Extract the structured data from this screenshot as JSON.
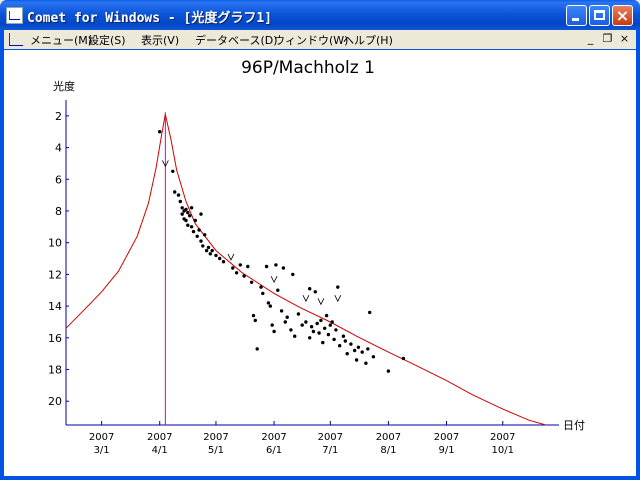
{
  "window": {
    "title": "Comet for Windows - [光度グラフ1]"
  },
  "menubar": {
    "items": [
      "メニュー(M)",
      "設定(S)",
      "表示(V)",
      "データベース(D)",
      "ウィンドウ(W)",
      "ヘルプ(H)"
    ]
  },
  "mdi_buttons": {
    "minimize": "_",
    "restore": "❐",
    "close": "×"
  },
  "chart_data": {
    "type": "scatter",
    "title": "96P/Machholz 1",
    "ylabel": "光度",
    "xlabel": "日付",
    "y_ticks": [
      "2",
      "4",
      "6",
      "8",
      "10",
      "12",
      "14",
      "16",
      "18",
      "20"
    ],
    "y_axis": {
      "inverted": true,
      "range": [
        1,
        21.5
      ]
    },
    "x_axis": {
      "range": [
        "2007-02-10",
        "2007-10-31"
      ]
    },
    "x_ticks": [
      {
        "year": "2007",
        "date": "3/1"
      },
      {
        "year": "2007",
        "date": "4/1"
      },
      {
        "year": "2007",
        "date": "5/1"
      },
      {
        "year": "2007",
        "date": "6/1"
      },
      {
        "year": "2007",
        "date": "7/1"
      },
      {
        "year": "2007",
        "date": "8/1"
      },
      {
        "year": "2007",
        "date": "9/1"
      },
      {
        "year": "2007",
        "date": "10/1"
      }
    ],
    "perihelion": {
      "date": "2007-04-04",
      "magnitude": 1.9
    },
    "model_curve": [
      [
        "2007-02-10",
        15.4
      ],
      [
        "2007-02-20",
        14.2
      ],
      [
        "2007-03-01",
        13.1
      ],
      [
        "2007-03-10",
        11.8
      ],
      [
        "2007-03-20",
        9.6
      ],
      [
        "2007-03-26",
        7.5
      ],
      [
        "2007-03-30",
        5.3
      ],
      [
        "2007-04-02",
        3.2
      ],
      [
        "2007-04-04",
        1.9
      ],
      [
        "2007-04-07",
        3.5
      ],
      [
        "2007-04-10",
        5.4
      ],
      [
        "2007-04-15",
        7.4
      ],
      [
        "2007-04-20",
        8.8
      ],
      [
        "2007-05-01",
        10.5
      ],
      [
        "2007-05-15",
        11.9
      ],
      [
        "2007-06-01",
        13.2
      ],
      [
        "2007-06-15",
        14.1
      ],
      [
        "2007-07-01",
        15.0
      ],
      [
        "2007-07-15",
        15.9
      ],
      [
        "2007-08-01",
        16.9
      ],
      [
        "2007-08-15",
        17.7
      ],
      [
        "2007-09-01",
        18.7
      ],
      [
        "2007-09-15",
        19.6
      ],
      [
        "2007-10-01",
        20.5
      ],
      [
        "2007-10-15",
        21.2
      ],
      [
        "2007-10-24",
        21.5
      ]
    ],
    "observations": [
      [
        "2007-04-01",
        3.0
      ],
      [
        "2007-04-08",
        5.5
      ],
      [
        "2007-04-09",
        6.8
      ],
      [
        "2007-04-11",
        7.0
      ],
      [
        "2007-04-12",
        7.4
      ],
      [
        "2007-04-13",
        7.8
      ],
      [
        "2007-04-13",
        8.2
      ],
      [
        "2007-04-14",
        8.0
      ],
      [
        "2007-04-14",
        8.5
      ],
      [
        "2007-04-15",
        7.9
      ],
      [
        "2007-04-15",
        8.6
      ],
      [
        "2007-04-16",
        8.1
      ],
      [
        "2007-04-16",
        8.9
      ],
      [
        "2007-04-17",
        8.3
      ],
      [
        "2007-04-18",
        9.0
      ],
      [
        "2007-04-18",
        7.8
      ],
      [
        "2007-04-19",
        9.3
      ],
      [
        "2007-04-20",
        8.6
      ],
      [
        "2007-04-21",
        9.6
      ],
      [
        "2007-04-22",
        9.2
      ],
      [
        "2007-04-23",
        9.9
      ],
      [
        "2007-04-23",
        8.2
      ],
      [
        "2007-04-24",
        10.2
      ],
      [
        "2007-04-25",
        9.5
      ],
      [
        "2007-04-26",
        10.5
      ],
      [
        "2007-04-27",
        10.3
      ],
      [
        "2007-04-28",
        10.7
      ],
      [
        "2007-04-29",
        10.5
      ],
      [
        "2007-05-01",
        10.8
      ],
      [
        "2007-05-03",
        11.0
      ],
      [
        "2007-05-05",
        11.2
      ],
      [
        "2007-05-10",
        11.6
      ],
      [
        "2007-05-12",
        11.9
      ],
      [
        "2007-05-14",
        11.4
      ],
      [
        "2007-05-16",
        12.1
      ],
      [
        "2007-05-18",
        11.5
      ],
      [
        "2007-05-20",
        12.5
      ],
      [
        "2007-05-21",
        14.6
      ],
      [
        "2007-05-22",
        14.9
      ],
      [
        "2007-05-23",
        16.7
      ],
      [
        "2007-05-25",
        12.8
      ],
      [
        "2007-05-26",
        13.2
      ],
      [
        "2007-05-28",
        11.5
      ],
      [
        "2007-05-29",
        13.8
      ],
      [
        "2007-05-30",
        14.0
      ],
      [
        "2007-05-31",
        15.2
      ],
      [
        "2007-06-01",
        15.6
      ],
      [
        "2007-06-02",
        11.4
      ],
      [
        "2007-06-03",
        13.0
      ],
      [
        "2007-06-05",
        14.3
      ],
      [
        "2007-06-06",
        11.6
      ],
      [
        "2007-06-07",
        15.0
      ],
      [
        "2007-06-08",
        14.7
      ],
      [
        "2007-06-10",
        15.5
      ],
      [
        "2007-06-11",
        12.0
      ],
      [
        "2007-06-12",
        15.9
      ],
      [
        "2007-06-14",
        14.5
      ],
      [
        "2007-06-16",
        15.2
      ],
      [
        "2007-06-18",
        15.0
      ],
      [
        "2007-06-20",
        16.0
      ],
      [
        "2007-06-20",
        12.9
      ],
      [
        "2007-06-21",
        15.3
      ],
      [
        "2007-06-22",
        15.6
      ],
      [
        "2007-06-23",
        13.1
      ],
      [
        "2007-06-24",
        15.1
      ],
      [
        "2007-06-25",
        15.7
      ],
      [
        "2007-06-26",
        14.9
      ],
      [
        "2007-06-27",
        16.3
      ],
      [
        "2007-06-28",
        15.4
      ],
      [
        "2007-06-29",
        14.6
      ],
      [
        "2007-06-30",
        15.8
      ],
      [
        "2007-07-01",
        15.2
      ],
      [
        "2007-07-02",
        15.0
      ],
      [
        "2007-07-03",
        16.1
      ],
      [
        "2007-07-04",
        15.5
      ],
      [
        "2007-07-05",
        12.8
      ],
      [
        "2007-07-06",
        16.5
      ],
      [
        "2007-07-08",
        15.9
      ],
      [
        "2007-07-09",
        16.2
      ],
      [
        "2007-07-10",
        17.0
      ],
      [
        "2007-07-12",
        16.4
      ],
      [
        "2007-07-14",
        16.8
      ],
      [
        "2007-07-15",
        17.4
      ],
      [
        "2007-07-16",
        16.6
      ],
      [
        "2007-07-18",
        16.9
      ],
      [
        "2007-07-20",
        17.6
      ],
      [
        "2007-07-21",
        16.7
      ],
      [
        "2007-07-22",
        14.4
      ],
      [
        "2007-07-24",
        17.2
      ],
      [
        "2007-08-01",
        18.1
      ],
      [
        "2007-08-09",
        17.3
      ]
    ],
    "visual_markers": [
      [
        "2007-04-04",
        5.0
      ],
      [
        "2007-05-09",
        10.9
      ],
      [
        "2007-06-01",
        12.3
      ],
      [
        "2007-06-18",
        13.5
      ],
      [
        "2007-06-26",
        13.7
      ],
      [
        "2007-07-05",
        13.5
      ]
    ],
    "colors": {
      "curve": "#d00000",
      "perihelion_line": "#cc00cc",
      "axis": "#0000a0",
      "points": "#000000"
    }
  }
}
